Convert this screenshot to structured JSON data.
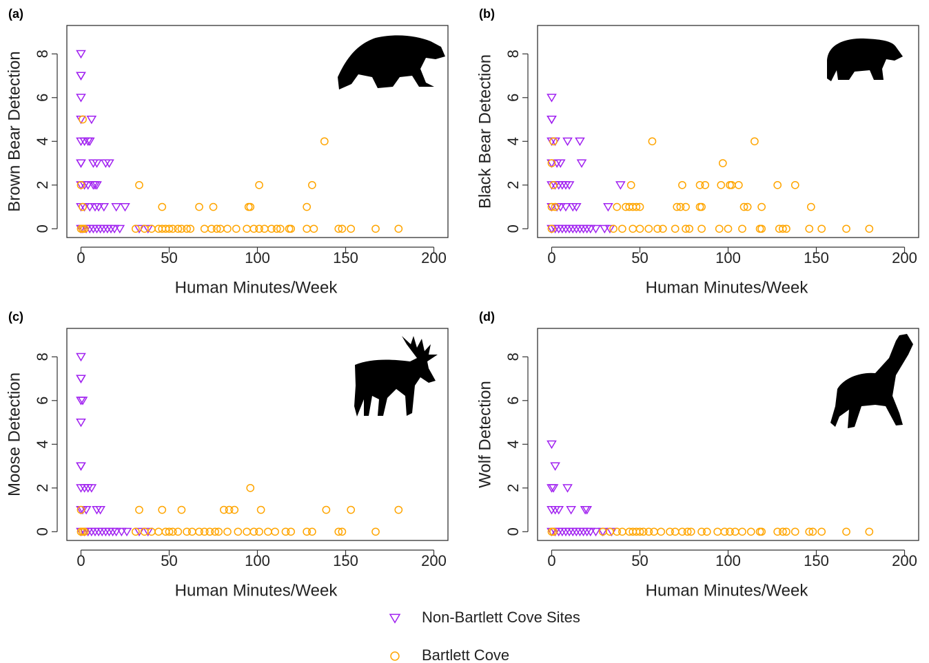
{
  "chart_data": [
    {
      "type": "scatter",
      "label": "(a)",
      "xlabel": "Human Minutes/Week",
      "ylabel": "Brown Bear Detection",
      "xlim": [
        -8,
        208
      ],
      "ylim": [
        -0.4,
        9.3
      ],
      "xticks": [
        0,
        50,
        100,
        150,
        200
      ],
      "yticks": [
        0,
        2,
        4,
        6,
        8
      ],
      "series": [
        {
          "x": [
            0,
            0,
            0,
            0,
            0,
            6,
            0,
            2,
            4,
            5,
            0,
            0,
            7,
            9,
            14,
            16,
            0,
            2,
            4,
            7,
            8,
            9,
            0,
            2,
            5,
            8,
            10,
            13,
            20,
            25,
            0,
            1,
            3,
            5,
            7,
            9,
            11,
            13,
            15,
            17,
            19,
            22,
            33,
            38
          ],
          "values": [
            8,
            7,
            7,
            6,
            5,
            5,
            4,
            4,
            4,
            4,
            3,
            3,
            3,
            3,
            3,
            3,
            2,
            2,
            2,
            2,
            2,
            2,
            1,
            1,
            1,
            1,
            1,
            1,
            1,
            1,
            0,
            0,
            0,
            0,
            0,
            0,
            0,
            0,
            0,
            0,
            0,
            0,
            0,
            0
          ]
        },
        {
          "x": [
            1,
            0,
            1,
            0,
            1,
            2,
            33,
            101,
            131,
            138,
            46,
            67,
            75,
            95,
            96,
            128,
            31,
            36,
            40,
            44,
            46,
            48,
            50,
            52,
            55,
            57,
            60,
            62,
            70,
            74,
            77,
            79,
            83,
            88,
            94,
            98,
            101,
            104,
            108,
            111,
            113,
            118,
            119,
            128,
            132,
            146,
            148,
            153,
            167,
            180
          ],
          "values": [
            5,
            2,
            1,
            0,
            0,
            0,
            2,
            2,
            2,
            4,
            1,
            1,
            1,
            1,
            1,
            1,
            0,
            0,
            0,
            0,
            0,
            0,
            0,
            0,
            0,
            0,
            0,
            0,
            0,
            0,
            0,
            0,
            0,
            0,
            0,
            0,
            0,
            0,
            0,
            0,
            0,
            0,
            0,
            0,
            0,
            0,
            0,
            0,
            0,
            0
          ]
        }
      ]
    },
    {
      "type": "scatter",
      "label": "(b)",
      "xlabel": "Human Minutes/Week",
      "ylabel": "Black Bear Detection",
      "xlim": [
        -8,
        208
      ],
      "ylim": [
        -0.4,
        9.3
      ],
      "xticks": [
        0,
        50,
        100,
        150,
        200
      ],
      "yticks": [
        0,
        2,
        4,
        6,
        8
      ],
      "series": [
        {
          "x": [
            0,
            0,
            0,
            0,
            2,
            9,
            16,
            0,
            3,
            5,
            17,
            0,
            2,
            4,
            6,
            8,
            10,
            39,
            0,
            3,
            5,
            8,
            12,
            14,
            32,
            0,
            2,
            4,
            6,
            8,
            10,
            12,
            14,
            16,
            18,
            20,
            22,
            25,
            30,
            33
          ],
          "values": [
            6,
            5,
            5,
            4,
            4,
            4,
            4,
            3,
            3,
            3,
            3,
            2,
            2,
            2,
            2,
            2,
            2,
            2,
            1,
            1,
            1,
            1,
            1,
            1,
            1,
            0,
            0,
            0,
            0,
            0,
            0,
            0,
            0,
            0,
            0,
            0,
            0,
            0,
            0,
            0
          ]
        },
        {
          "x": [
            1,
            0,
            1,
            0,
            2,
            0,
            57,
            115,
            97,
            45,
            74,
            84,
            87,
            96,
            101,
            102,
            106,
            128,
            138,
            37,
            42,
            44,
            46,
            48,
            50,
            71,
            73,
            76,
            84,
            85,
            109,
            111,
            119,
            147,
            35,
            40,
            46,
            50,
            55,
            60,
            63,
            70,
            76,
            78,
            85,
            95,
            100,
            108,
            118,
            119,
            129,
            131,
            133,
            146,
            153,
            167,
            180
          ],
          "values": [
            4,
            3,
            2,
            1,
            1,
            0,
            4,
            4,
            3,
            2,
            2,
            2,
            2,
            2,
            2,
            2,
            2,
            2,
            2,
            1,
            1,
            1,
            1,
            1,
            1,
            1,
            1,
            1,
            1,
            1,
            1,
            1,
            1,
            1,
            0,
            0,
            0,
            0,
            0,
            0,
            0,
            0,
            0,
            0,
            0,
            0,
            0,
            0,
            0,
            0,
            0,
            0,
            0,
            0,
            0,
            0,
            0
          ]
        }
      ]
    },
    {
      "type": "scatter",
      "label": "(c)",
      "xlabel": "Human Minutes/Week",
      "ylabel": "Moose Detection",
      "xlim": [
        -8,
        208
      ],
      "ylim": [
        -0.4,
        9.3
      ],
      "xticks": [
        0,
        50,
        100,
        150,
        200
      ],
      "yticks": [
        0,
        2,
        4,
        6,
        8
      ],
      "series": [
        {
          "x": [
            0,
            0,
            0,
            0,
            1,
            0,
            0,
            0,
            0,
            2,
            4,
            6,
            0,
            1,
            3,
            9,
            11,
            0,
            2,
            4,
            6,
            8,
            10,
            12,
            14,
            16,
            18,
            20,
            23,
            26,
            33,
            38
          ],
          "values": [
            8,
            7,
            7,
            6,
            6,
            5,
            3,
            3,
            2,
            2,
            2,
            2,
            1,
            1,
            1,
            1,
            1,
            0,
            0,
            0,
            0,
            0,
            0,
            0,
            0,
            0,
            0,
            0,
            0,
            0,
            0,
            0
          ]
        },
        {
          "x": [
            0,
            96,
            33,
            46,
            57,
            81,
            84,
            87,
            102,
            139,
            153,
            180,
            0,
            1,
            2,
            31,
            36,
            40,
            44,
            48,
            50,
            52,
            55,
            60,
            63,
            67,
            70,
            73,
            76,
            78,
            83,
            89,
            94,
            98,
            101,
            106,
            110,
            116,
            119,
            128,
            131,
            146,
            148,
            167
          ],
          "values": [
            1,
            2,
            1,
            1,
            1,
            1,
            1,
            1,
            1,
            1,
            1,
            1,
            0,
            0,
            0,
            0,
            0,
            0,
            0,
            0,
            0,
            0,
            0,
            0,
            0,
            0,
            0,
            0,
            0,
            0,
            0,
            0,
            0,
            0,
            0,
            0,
            0,
            0,
            0,
            0,
            0,
            0,
            0,
            0
          ]
        }
      ]
    },
    {
      "type": "scatter",
      "label": "(d)",
      "xlabel": "Human Minutes/Week",
      "ylabel": "Wolf Detection",
      "xlim": [
        -8,
        208
      ],
      "ylim": [
        -0.4,
        9.3
      ],
      "xticks": [
        0,
        50,
        100,
        150,
        200
      ],
      "yticks": [
        0,
        2,
        4,
        6,
        8
      ],
      "series": [
        {
          "x": [
            0,
            2,
            0,
            1,
            9,
            0,
            2,
            4,
            11,
            19,
            20,
            0,
            2,
            4,
            6,
            8,
            10,
            12,
            14,
            16,
            18,
            20,
            22,
            25,
            29,
            34
          ],
          "values": [
            4,
            3,
            2,
            2,
            2,
            1,
            1,
            1,
            1,
            1,
            1,
            0,
            0,
            0,
            0,
            0,
            0,
            0,
            0,
            0,
            0,
            0,
            0,
            0,
            0,
            0
          ]
        },
        {
          "x": [
            0,
            1,
            29,
            33,
            37,
            40,
            44,
            46,
            48,
            50,
            52,
            55,
            58,
            62,
            67,
            70,
            74,
            77,
            79,
            85,
            88,
            94,
            98,
            101,
            104,
            108,
            113,
            118,
            119,
            128,
            131,
            133,
            138,
            146,
            148,
            153,
            167,
            180
          ],
          "values": [
            0,
            0,
            0,
            0,
            0,
            0,
            0,
            0,
            0,
            0,
            0,
            0,
            0,
            0,
            0,
            0,
            0,
            0,
            0,
            0,
            0,
            0,
            0,
            0,
            0,
            0,
            0,
            0,
            0,
            0,
            0,
            0,
            0,
            0,
            0,
            0,
            0,
            0
          ]
        }
      ]
    }
  ],
  "legend": {
    "series": [
      {
        "name": "Non-Bartlett Cove Sites",
        "color": "#a020f0",
        "marker": "triangle-down"
      },
      {
        "name": "Bartlett Cove",
        "color": "#ffa500",
        "marker": "circle"
      }
    ]
  }
}
